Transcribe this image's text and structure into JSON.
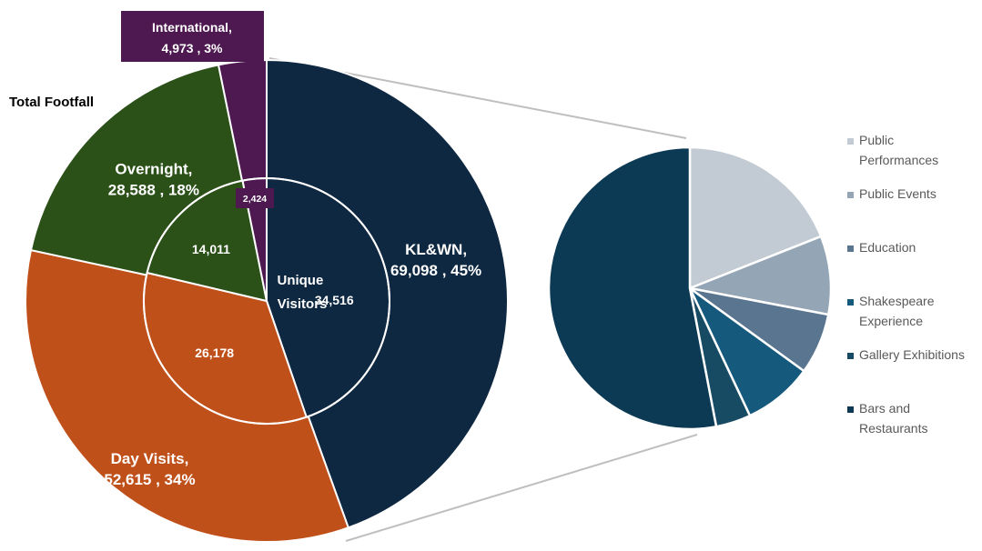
{
  "chart_data": [
    {
      "type": "pie",
      "title": "Total Footfall",
      "center_label": "Unique Visitors",
      "outer_ring": [
        {
          "name": "KL&WN",
          "value": 69098,
          "percent": "45%",
          "color": "#0e2841"
        },
        {
          "name": "Day Visits",
          "value": 52615,
          "percent": "34%",
          "color": "#c0501a"
        },
        {
          "name": "Overnight",
          "value": 28588,
          "percent": "18%",
          "color": "#2b5118"
        },
        {
          "name": "International",
          "value": 4973,
          "percent": "3%",
          "color": "#4e1850"
        }
      ],
      "inner_ring": [
        {
          "name": "KL&WN",
          "value": 34516,
          "display": "34,516"
        },
        {
          "name": "Day Visits",
          "value": 26178,
          "display": "26,178"
        },
        {
          "name": "Overnight",
          "value": 14011,
          "display": "14,011"
        },
        {
          "name": "International",
          "value": 2424,
          "display": "2,424"
        }
      ],
      "outer_labels": [
        {
          "line1": "KL&WN,",
          "line2": "69,098 , 45%"
        },
        {
          "line1": "Day Visits,",
          "line2": "52,615 , 34%"
        },
        {
          "line1": "Overnight,",
          "line2": "28,588 , 18%"
        },
        {
          "line1": "International,",
          "line2": "4,973 , 3%"
        }
      ]
    },
    {
      "type": "pie",
      "title": "",
      "slices": [
        {
          "name": "Public Performances",
          "value": 19,
          "color": "#c2cad3"
        },
        {
          "name": "Public Events",
          "value": 9,
          "color": "#94a5b5"
        },
        {
          "name": "Education",
          "value": 7,
          "color": "#5a758f"
        },
        {
          "name": "Shakespeare Experience",
          "value": 8,
          "color": "#155a7d"
        },
        {
          "name": "Gallery Exhibitions",
          "value": 4,
          "color": "#174a63"
        },
        {
          "name": "Bars and Restaurants",
          "value": 53,
          "color": "#0c3a55"
        }
      ],
      "legend": [
        [
          "Public",
          "Performances"
        ],
        [
          "Public Events"
        ],
        [
          "Education"
        ],
        [
          "Shakespeare",
          "Experience"
        ],
        [
          "Gallery Exhibitions"
        ],
        [
          "Bars and",
          "Restaurants"
        ]
      ],
      "legend_position": "right"
    }
  ]
}
